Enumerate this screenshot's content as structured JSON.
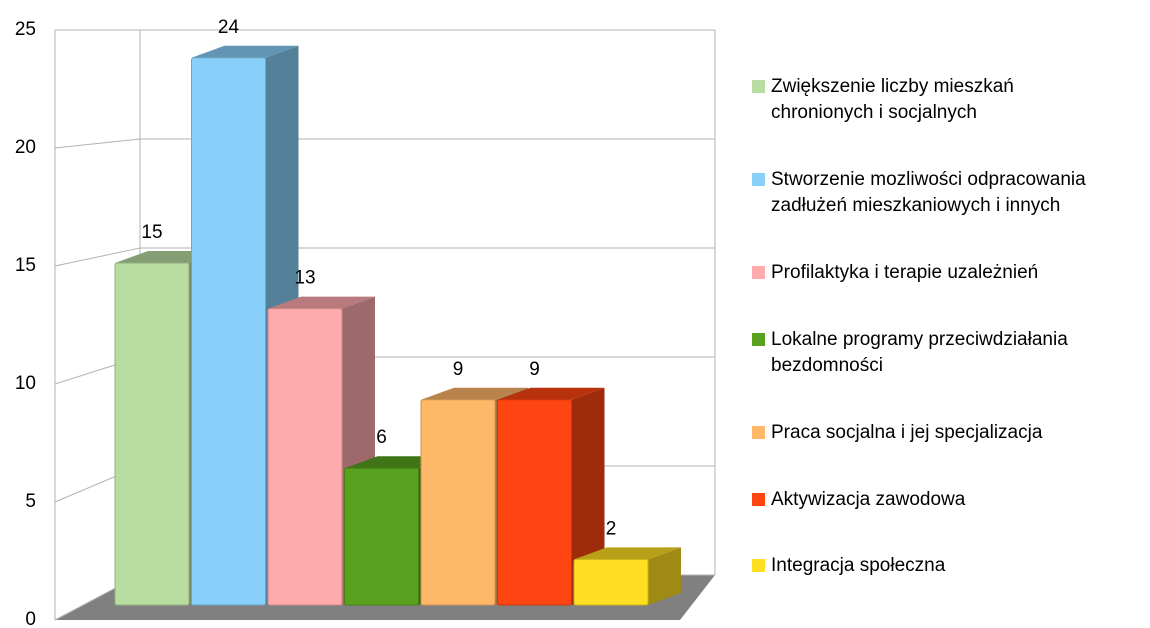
{
  "chart_data": {
    "type": "bar",
    "ylim": [
      0,
      25
    ],
    "yticks": [
      0,
      5,
      10,
      15,
      20,
      25
    ],
    "grid": true,
    "legend": "right",
    "series": [
      {
        "name": "Zwiększenie liczby mieszkań chronionych i socjalnych",
        "color": "#b9dca0",
        "values": [
          15
        ]
      },
      {
        "name": "Stworzenie mozliwości odpracowania zadłużeń mieszkaniowych i innych",
        "color": "#88cff9",
        "values": [
          24
        ]
      },
      {
        "name": "Profilaktyka i terapie uzależnień",
        "color": "#ffaaad",
        "values": [
          13
        ]
      },
      {
        "name": "Lokalne programy przeciwdziałania bezdomności",
        "color": "#58a21f",
        "values": [
          6
        ]
      },
      {
        "name": "Praca socjalna i jej specjalizacja",
        "color": "#ffb868",
        "values": [
          9
        ]
      },
      {
        "name": "Aktywizacja zawodowa",
        "color": "#ff4512",
        "values": [
          9
        ]
      },
      {
        "name": "Integracja społeczna",
        "color": "#ffdf22",
        "values": [
          2
        ]
      }
    ]
  }
}
